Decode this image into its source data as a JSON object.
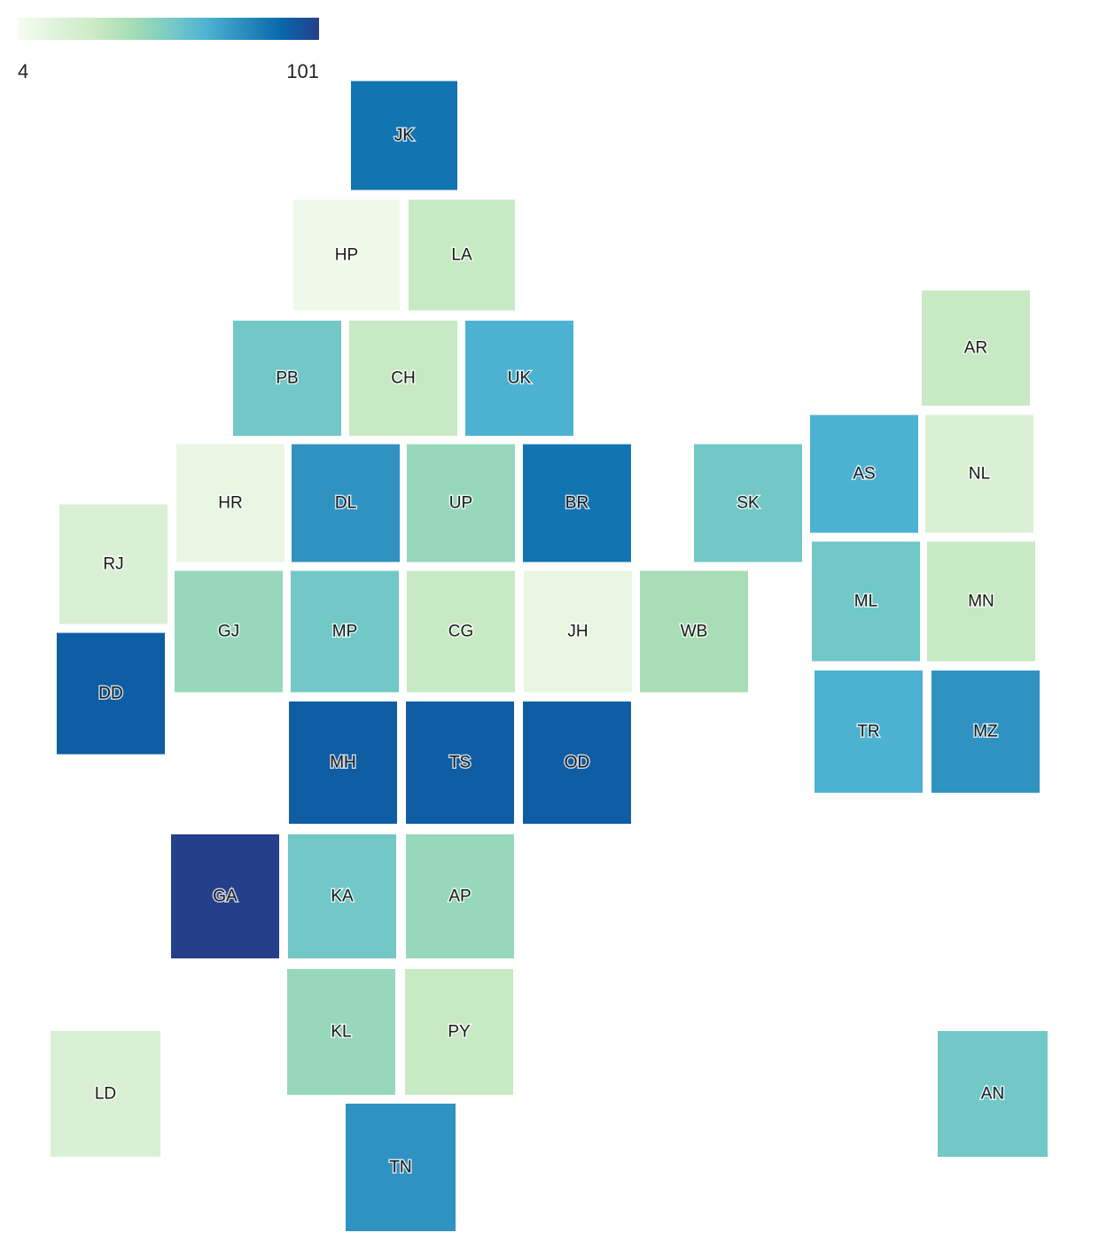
{
  "legend": {
    "min_label": "4",
    "max_label": "101",
    "min": 4,
    "max": 101,
    "colors": [
      "#f7fcf0",
      "#e0f3db",
      "#ccebc5",
      "#a8ddb5",
      "#7bccc4",
      "#4eb3d3",
      "#2b8cbe",
      "#0868ac",
      "#253f8a"
    ]
  },
  "regions": [
    {
      "code": "JK",
      "value": 85
    },
    {
      "code": "HP",
      "value": 8
    },
    {
      "code": "LA",
      "value": 30
    },
    {
      "code": "PB",
      "value": 55
    },
    {
      "code": "CH",
      "value": 30
    },
    {
      "code": "UK",
      "value": 65
    },
    {
      "code": "AR",
      "value": 30
    },
    {
      "code": "HR",
      "value": 12
    },
    {
      "code": "DL",
      "value": 75
    },
    {
      "code": "UP",
      "value": 45
    },
    {
      "code": "BR",
      "value": 85
    },
    {
      "code": "SK",
      "value": 55
    },
    {
      "code": "AS",
      "value": 65
    },
    {
      "code": "NL",
      "value": 20
    },
    {
      "code": "RJ",
      "value": 20
    },
    {
      "code": "GJ",
      "value": 45
    },
    {
      "code": "MP",
      "value": 55
    },
    {
      "code": "CG",
      "value": 30
    },
    {
      "code": "JH",
      "value": 12
    },
    {
      "code": "WB",
      "value": 40
    },
    {
      "code": "ML",
      "value": 55
    },
    {
      "code": "MN",
      "value": 30
    },
    {
      "code": "DD",
      "value": 92
    },
    {
      "code": "TR",
      "value": 65
    },
    {
      "code": "MZ",
      "value": 75
    },
    {
      "code": "MH",
      "value": 92
    },
    {
      "code": "TS",
      "value": 92
    },
    {
      "code": "OD",
      "value": 92
    },
    {
      "code": "GA",
      "value": 101
    },
    {
      "code": "KA",
      "value": 55
    },
    {
      "code": "AP",
      "value": 45
    },
    {
      "code": "KL",
      "value": 45
    },
    {
      "code": "PY",
      "value": 30
    },
    {
      "code": "LD",
      "value": 20
    },
    {
      "code": "AN",
      "value": 55
    },
    {
      "code": "TN",
      "value": 75
    }
  ]
}
